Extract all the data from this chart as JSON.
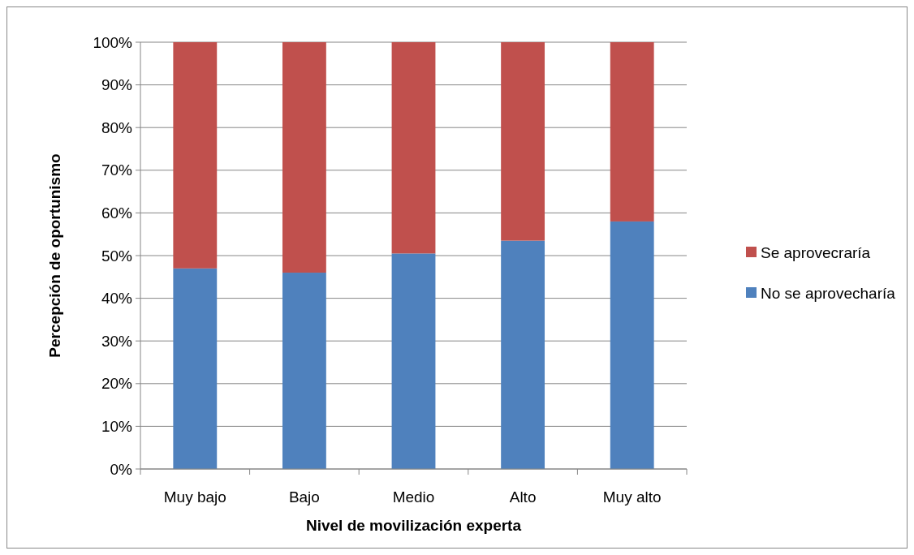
{
  "chart_data": {
    "type": "bar",
    "stacked": true,
    "xlabel": "Nivel de movilización experta",
    "ylabel": "Percepción de oportunismo",
    "categories": [
      "Muy bajo",
      "Bajo",
      "Medio",
      "Alto",
      "Muy alto"
    ],
    "series": [
      {
        "name": "No se aprovecharía",
        "color": "#4f81bd",
        "values": [
          47,
          46,
          50.5,
          53.5,
          58
        ]
      },
      {
        "name": "Se aprovecraría",
        "color": "#c0504d",
        "values": [
          53,
          54,
          49.5,
          46.5,
          42
        ]
      }
    ],
    "ylim": [
      0,
      100
    ],
    "yticks": [
      {
        "value": 0,
        "label": "0%"
      },
      {
        "value": 10,
        "label": "10%"
      },
      {
        "value": 20,
        "label": "20%"
      },
      {
        "value": 30,
        "label": "30%"
      },
      {
        "value": 40,
        "label": "40%"
      },
      {
        "value": 50,
        "label": "50%"
      },
      {
        "value": 60,
        "label": "60%"
      },
      {
        "value": 70,
        "label": "70%"
      },
      {
        "value": 80,
        "label": "80%"
      },
      {
        "value": 90,
        "label": "90%"
      },
      {
        "value": 100,
        "label": "100%"
      }
    ],
    "grid": "y",
    "legend": "right"
  }
}
